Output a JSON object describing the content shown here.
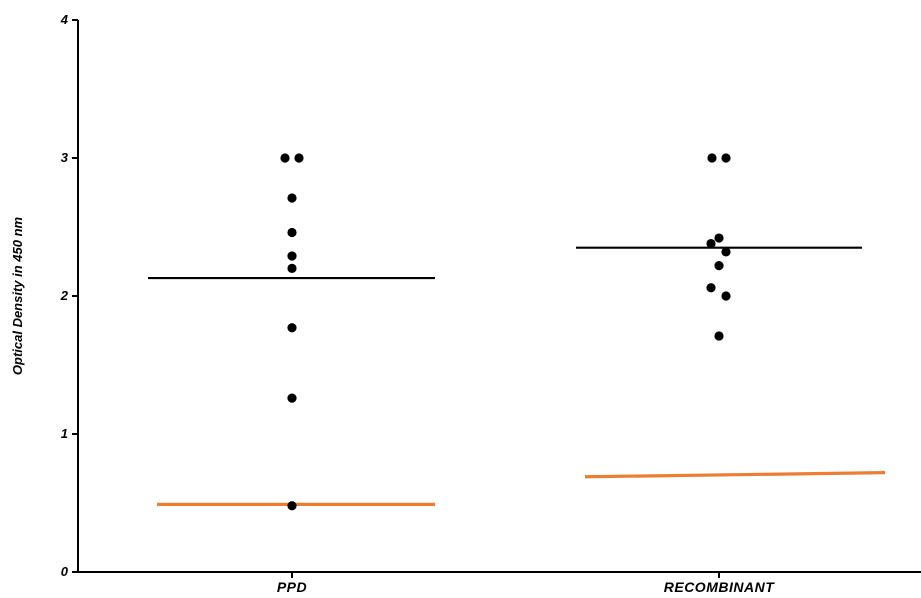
{
  "chart_data": {
    "type": "scatter",
    "title": "",
    "xlabel": "",
    "ylabel": "Optical Density in 450 nm",
    "ylim": [
      0,
      4
    ],
    "yticks": [
      "0",
      "1",
      "2",
      "3",
      "4"
    ],
    "grid": false,
    "categories": [
      "PPD",
      "RECOMBINANT"
    ],
    "groups": [
      {
        "category": "PPD",
        "points": [
          3.0,
          3.0,
          2.71,
          2.46,
          2.29,
          2.2,
          1.77,
          1.26,
          0.48
        ],
        "mean": 2.13,
        "cutoff": 0.49
      },
      {
        "category": "RECOMBINANT",
        "points": [
          3.0,
          3.0,
          2.42,
          2.38,
          2.32,
          2.22,
          2.06,
          2.0,
          1.71
        ],
        "mean": 2.35,
        "cutoff_start": 0.69,
        "cutoff_end": 0.72
      }
    ],
    "colors": {
      "points": "#000000",
      "mean_line": "#000000",
      "cutoff_line": "#ed7d31",
      "axis": "#000000"
    }
  }
}
